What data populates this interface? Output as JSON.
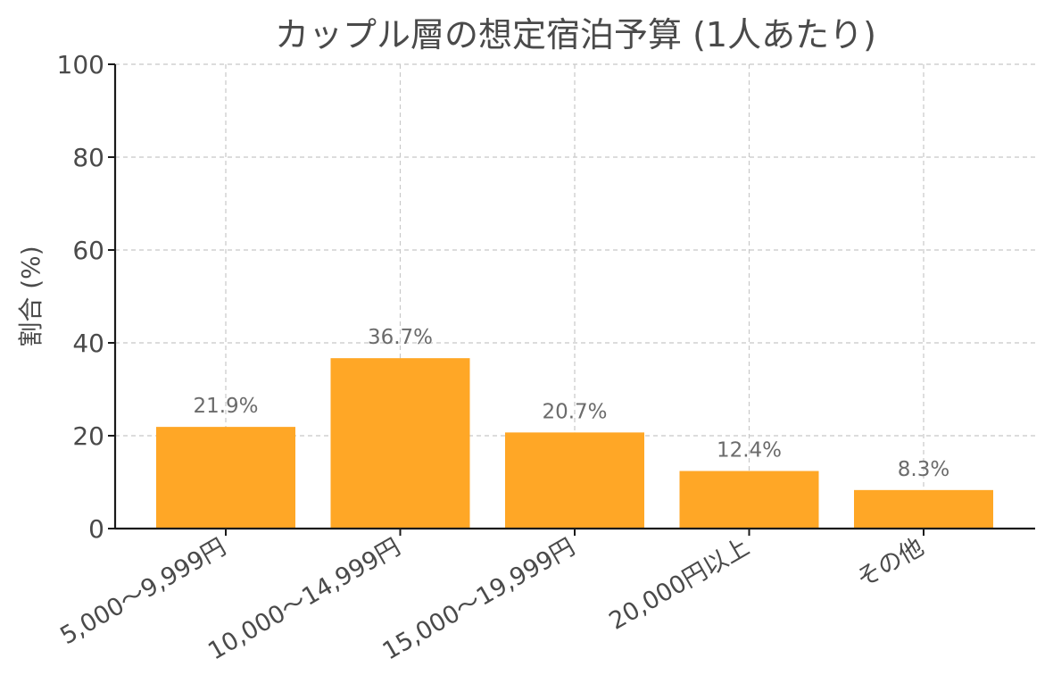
{
  "chart_data": {
    "type": "bar",
    "title": "カップル層の想定宿泊予算 (1人あたり)",
    "xlabel": "",
    "ylabel": "割合 (%)",
    "categories": [
      "5,000〜9,999円",
      "10,000〜14,999円",
      "15,000〜19,999円",
      "20,000円以上",
      "その他"
    ],
    "values": [
      21.9,
      36.7,
      20.7,
      12.4,
      8.3
    ],
    "value_labels": [
      "21.9%",
      "36.7%",
      "20.7%",
      "12.4%",
      "8.3%"
    ],
    "ylim": [
      0,
      100
    ],
    "yticks": [
      0,
      20,
      40,
      60,
      80,
      100
    ],
    "ytick_labels": [
      "0",
      "20",
      "40",
      "60",
      "80",
      "100"
    ],
    "grid": true,
    "bar_color": "#FFA726",
    "text_color": "#4a4a4a",
    "label_color": "#6b6b6b",
    "grid_color": "#c8c8c8",
    "axis_color": "#1a1a1a"
  }
}
